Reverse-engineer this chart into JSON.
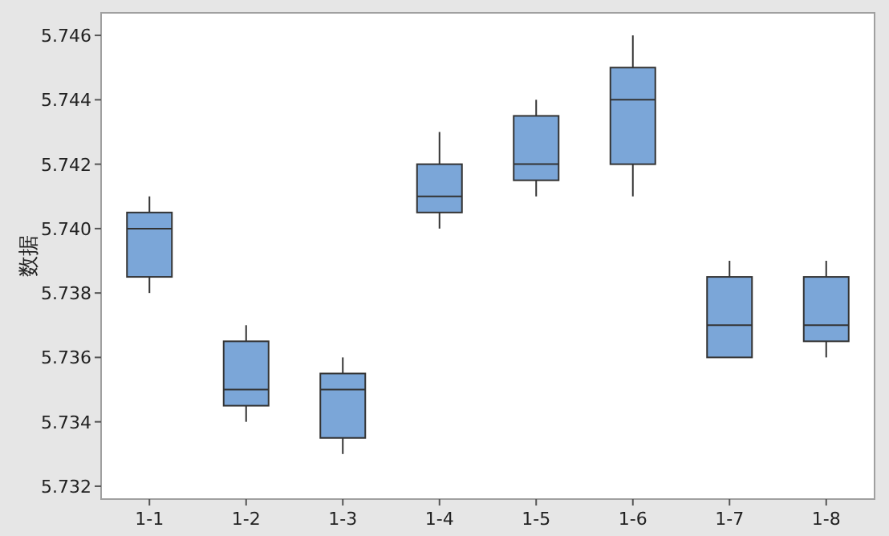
{
  "chart_data": {
    "type": "box",
    "ylabel": "数据",
    "color": "#7ba6d8",
    "categories": [
      "1-1",
      "1-2",
      "1-3",
      "1-4",
      "1-5",
      "1-6",
      "1-7",
      "1-8"
    ],
    "boxes": [
      {
        "low": 5.738,
        "q1": 5.7385,
        "median": 5.74,
        "q3": 5.7405,
        "high": 5.741
      },
      {
        "low": 5.734,
        "q1": 5.7345,
        "median": 5.735,
        "q3": 5.7365,
        "high": 5.737
      },
      {
        "low": 5.733,
        "q1": 5.7335,
        "median": 5.735,
        "q3": 5.7355,
        "high": 5.736
      },
      {
        "low": 5.74,
        "q1": 5.7405,
        "median": 5.741,
        "q3": 5.742,
        "high": 5.743
      },
      {
        "low": 5.741,
        "q1": 5.7415,
        "median": 5.742,
        "q3": 5.7435,
        "high": 5.744
      },
      {
        "low": 5.741,
        "q1": 5.742,
        "median": 5.744,
        "q3": 5.745,
        "high": 5.746
      },
      {
        "low": 5.736,
        "q1": 5.736,
        "median": 5.737,
        "q3": 5.7385,
        "high": 5.739
      },
      {
        "low": 5.736,
        "q1": 5.7365,
        "median": 5.737,
        "q3": 5.7385,
        "high": 5.739
      }
    ],
    "ylim": [
      5.7316,
      5.7467
    ],
    "yticks": [
      {
        "value": 5.732,
        "label": "5.732"
      },
      {
        "value": 5.734,
        "label": "5.734"
      },
      {
        "value": 5.736,
        "label": "5.736"
      },
      {
        "value": 5.738,
        "label": "5.738"
      },
      {
        "value": 5.74,
        "label": "5.740"
      },
      {
        "value": 5.742,
        "label": "5.742"
      },
      {
        "value": 5.744,
        "label": "5.744"
      },
      {
        "value": 5.746,
        "label": "5.746"
      }
    ]
  }
}
